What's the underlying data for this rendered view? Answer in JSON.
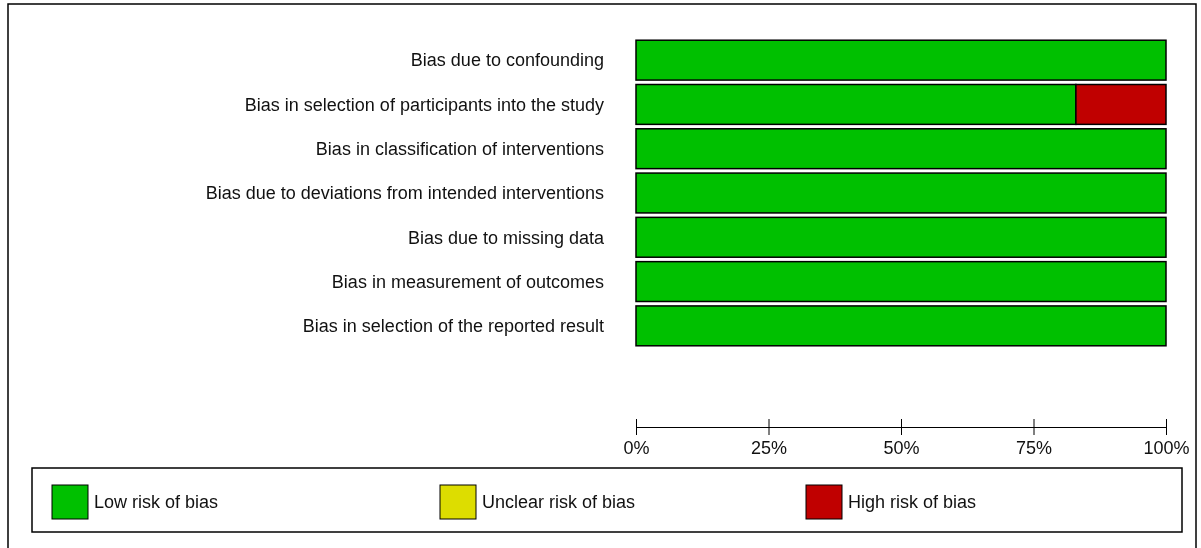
{
  "chart_data": {
    "type": "bar",
    "orientation": "horizontal",
    "stacked": true,
    "categories": [
      "Bias due to confounding",
      "Bias in selection of participants into the study",
      "Bias in classification of interventions",
      "Bias due to deviations from intended interventions",
      "Bias due to missing data",
      "Bias in measurement of outcomes",
      "Bias in selection of the reported result"
    ],
    "series": [
      {
        "name": "Low risk of bias",
        "color": "#00c000",
        "values": [
          100,
          83,
          100,
          100,
          100,
          100,
          100
        ]
      },
      {
        "name": "Unclear risk of bias",
        "color": "#dddd00",
        "values": [
          0,
          0,
          0,
          0,
          0,
          0,
          0
        ]
      },
      {
        "name": "High risk of bias",
        "color": "#c00000",
        "values": [
          0,
          17,
          0,
          0,
          0,
          0,
          0
        ]
      }
    ],
    "xlim": [
      0,
      100
    ],
    "xticks": [
      {
        "value": 0,
        "label": "0%"
      },
      {
        "value": 25,
        "label": "25%"
      },
      {
        "value": 50,
        "label": "50%"
      },
      {
        "value": 75,
        "label": "75%"
      },
      {
        "value": 100,
        "label": "100%"
      }
    ],
    "grid": false,
    "legend": "bottom"
  }
}
